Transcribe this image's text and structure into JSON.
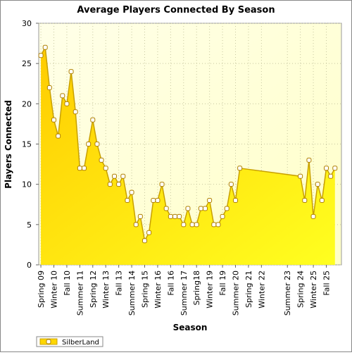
{
  "chart_data": {
    "type": "area",
    "title": "Average Players Connected By Season",
    "x_label": "Season",
    "y_label": "Players Connected",
    "series": [
      {
        "name": "SilberLand",
        "color": "#ffd700",
        "x": [
          0,
          1,
          2,
          3,
          4,
          5,
          6,
          7,
          8,
          9,
          10,
          11,
          12,
          13,
          14,
          15,
          16,
          17,
          18,
          19,
          20,
          21,
          22,
          23,
          24,
          25,
          26,
          27,
          28,
          29,
          30,
          31,
          32,
          33,
          34,
          35,
          36,
          37,
          38,
          39,
          40,
          41,
          42,
          43,
          44,
          45,
          46,
          60,
          61,
          62,
          63,
          64,
          65,
          66,
          67,
          68
        ],
        "values": [
          26,
          27,
          22,
          18,
          16,
          21,
          20,
          24,
          19,
          12,
          12,
          15,
          18,
          15,
          13,
          12,
          10,
          11,
          10,
          11,
          8,
          9,
          5,
          6,
          3,
          4,
          8,
          8,
          10,
          7,
          6,
          6,
          6,
          5,
          7,
          5,
          5,
          7,
          7,
          8,
          5,
          5,
          6,
          7,
          10,
          8,
          12,
          11,
          8,
          13,
          6,
          10,
          8,
          12,
          11,
          12
        ]
      }
    ],
    "xlim": [
      -0.5,
      69.5
    ],
    "xticks": [
      {
        "value": 0,
        "label": "Spring 09"
      },
      {
        "value": 3,
        "label": "Winter 10"
      },
      {
        "value": 6,
        "label": "Fall 10"
      },
      {
        "value": 9,
        "label": "Summer 11"
      },
      {
        "value": 12,
        "label": "Spring 12"
      },
      {
        "value": 15,
        "label": "Winter 13"
      },
      {
        "value": 18,
        "label": "Fall 13"
      },
      {
        "value": 21,
        "label": "Summer 14"
      },
      {
        "value": 24,
        "label": "Spring 15"
      },
      {
        "value": 27,
        "label": "Winter 16"
      },
      {
        "value": 30,
        "label": "Fall 16"
      },
      {
        "value": 33,
        "label": "Summer 17"
      },
      {
        "value": 36,
        "label": "Spring18"
      },
      {
        "value": 39,
        "label": "Winter 19"
      },
      {
        "value": 42,
        "label": "Fall 19"
      },
      {
        "value": 45,
        "label": "Summer 20"
      },
      {
        "value": 48,
        "label": "Spring 21"
      },
      {
        "value": 51,
        "label": "Winter 22"
      },
      {
        "value": 57,
        "label": "Summer 23"
      },
      {
        "value": 60,
        "label": "Spring 24"
      },
      {
        "value": 63,
        "label": "Winter 25"
      },
      {
        "value": 66,
        "label": "Fall 25"
      }
    ],
    "ylim": [
      0,
      30
    ],
    "yticks": [
      0,
      5,
      10,
      15,
      20,
      25,
      30
    ],
    "grid": true,
    "legend": "bottom-left"
  }
}
